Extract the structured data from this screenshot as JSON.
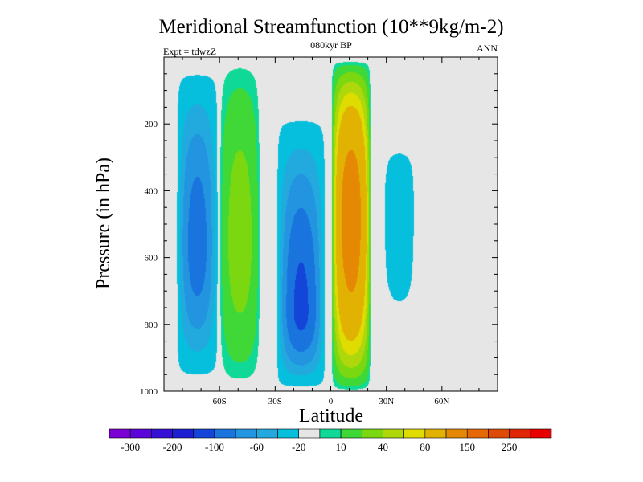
{
  "chart_data": {
    "type": "heatmap",
    "title": "Meridional Streamfunction (10**9kg/m-2)",
    "subtitle_center": "080kyr BP",
    "subtitle_left": "Expt = tdwzZ",
    "subtitle_right": "ANN",
    "xlabel": "Latitude",
    "ylabel": "Pressure (in hPa)",
    "xlim": [
      -90,
      90
    ],
    "ylim": [
      0,
      1000
    ],
    "y_reversed": true,
    "x_ticks": [
      {
        "value": -60,
        "label": "60S"
      },
      {
        "value": -30,
        "label": "30S"
      },
      {
        "value": 0,
        "label": "0"
      },
      {
        "value": 30,
        "label": "30N"
      },
      {
        "value": 60,
        "label": "60N"
      }
    ],
    "y_ticks": [
      {
        "value": 200,
        "label": "200"
      },
      {
        "value": 400,
        "label": "400"
      },
      {
        "value": 600,
        "label": "600"
      },
      {
        "value": 800,
        "label": "800"
      },
      {
        "value": 1000,
        "label": "1000"
      }
    ],
    "background_color": "#e6e6e6",
    "colorbar": {
      "labels": [
        "-300",
        "-200",
        "-100",
        "-60",
        "-20",
        "10",
        "40",
        "80",
        "150",
        "250"
      ],
      "colors": [
        "#7a00d4",
        "#5a06d8",
        "#3710d6",
        "#1d1fd2",
        "#1345d8",
        "#1a74de",
        "#2395e0",
        "#22aade",
        "#06bfdc",
        "#e6e6e6",
        "#10d998",
        "#40d837",
        "#7bd810",
        "#afd80c",
        "#dedc00",
        "#e2b203",
        "#e58904",
        "#e56805",
        "#e04a07",
        "#e02506",
        "#e60000"
      ]
    },
    "cells": [
      {
        "name": "left",
        "lon": -72,
        "half_width": 11,
        "p_top": 40,
        "p_bot": 960,
        "sign": -1,
        "peak": 80,
        "peak_p": 560
      },
      {
        "name": "ferrel-south",
        "lon": -49,
        "half_width": 11,
        "p_top": 0,
        "p_bot": 990,
        "sign": 1,
        "peak": 44,
        "peak_p": 550
      },
      {
        "name": "hadley-south",
        "lon": -16,
        "half_width": 13,
        "p_top": 180,
        "p_bot": 990,
        "sign": -1,
        "peak": 92,
        "peak_p": 760
      },
      {
        "name": "hadley-north",
        "lon": 11,
        "half_width": 10.5,
        "p_top": 10,
        "p_bot": 1000,
        "sign": 1,
        "peak": 155,
        "peak_p": 480
      },
      {
        "name": "ferrel-north",
        "lon": 37,
        "half_width": 9,
        "p_top": 250,
        "p_bot": 800,
        "sign": -1,
        "peak": 20,
        "peak_p": 450
      }
    ]
  }
}
